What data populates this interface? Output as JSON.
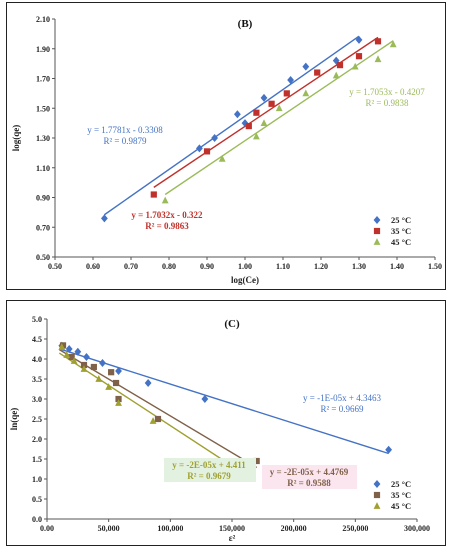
{
  "chart_data": [
    {
      "type": "scatter",
      "title": "(B)",
      "xlabel": "log(Ce)",
      "ylabel": "log(qe)",
      "xlim": [
        0.5,
        1.5
      ],
      "ylim": [
        0.5,
        2.1
      ],
      "xticks": [
        "0.50",
        "0.60",
        "0.70",
        "0.80",
        "0.90",
        "1.00",
        "1.10",
        "1.20",
        "1.30",
        "1.40",
        "1.50"
      ],
      "yticks": [
        "0.50",
        "0.70",
        "0.90",
        "1.10",
        "1.30",
        "1.50",
        "1.70",
        "1.90",
        "2.10"
      ],
      "grid": false,
      "legend": "bottom-right",
      "series": [
        {
          "name": "25 °C",
          "color": "#4472C4",
          "marker": "diamond",
          "x": [
            0.63,
            0.88,
            0.92,
            0.98,
            1.0,
            1.05,
            1.12,
            1.16,
            1.24,
            1.3
          ],
          "y": [
            0.76,
            1.23,
            1.3,
            1.46,
            1.4,
            1.57,
            1.69,
            1.78,
            1.82,
            1.96
          ],
          "equation": "y = 1.7781x - 0.3308",
          "r2": "R² = 0.9879",
          "fit": [
            0.63,
            1.3
          ]
        },
        {
          "name": "35 °C",
          "color": "#C0312B",
          "marker": "square",
          "x": [
            0.76,
            0.9,
            1.01,
            1.03,
            1.07,
            1.11,
            1.19,
            1.25,
            1.3,
            1.35
          ],
          "y": [
            0.92,
            1.21,
            1.38,
            1.47,
            1.53,
            1.6,
            1.74,
            1.79,
            1.85,
            1.95
          ],
          "equation": "y = 1.7032x - 0.322",
          "r2": "R² = 0.9863",
          "fit": [
            0.76,
            1.35
          ]
        },
        {
          "name": "45 °C",
          "color": "#9BBB59",
          "marker": "triangle",
          "x": [
            0.79,
            0.94,
            1.03,
            1.05,
            1.09,
            1.16,
            1.24,
            1.29,
            1.35,
            1.39
          ],
          "y": [
            0.88,
            1.16,
            1.31,
            1.4,
            1.5,
            1.6,
            1.72,
            1.78,
            1.83,
            1.93
          ],
          "equation": "y = 1.7053x - 0.4207",
          "r2": "R² = 0.9838",
          "fit": [
            0.79,
            1.39
          ]
        }
      ]
    },
    {
      "type": "scatter",
      "title": "(C)",
      "xlabel": "ε²",
      "ylabel": "ln(qe)",
      "xlim": [
        0,
        300000
      ],
      "ylim": [
        0.0,
        5.0
      ],
      "xticks": [
        "0.00",
        "50,000",
        "100,000",
        "150,000",
        "200,000",
        "250,000",
        "300,000"
      ],
      "yticks": [
        "0.0",
        "0.5",
        "1.0",
        "1.5",
        "2.0",
        "2.5",
        "3.0",
        "3.5",
        "4.0",
        "4.5",
        "5.0"
      ],
      "grid": false,
      "legend": "bottom-right",
      "series": [
        {
          "name": "25 °C",
          "color": "#4472C4",
          "marker": "diamond",
          "x": [
            12000,
            18000,
            25000,
            32000,
            45000,
            58000,
            82000,
            128000,
            277000
          ],
          "y": [
            4.33,
            4.25,
            4.18,
            4.05,
            3.9,
            3.7,
            3.4,
            3.0,
            1.73
          ],
          "equation": "y = -1E-05x + 4.3463",
          "r2": "R² = 0.9669",
          "fit": [
            10000,
            277000
          ]
        },
        {
          "name": "35 °C",
          "color": "#7F6048",
          "marker": "square",
          "x": [
            13000,
            20000,
            30000,
            38000,
            52000,
            56000,
            58000,
            90000,
            170000
          ],
          "y": [
            4.34,
            4.05,
            3.85,
            3.8,
            3.67,
            3.4,
            3.0,
            2.5,
            1.45
          ],
          "equation": "y = -2E-05x + 4.4769",
          "r2": "R² = 0.9588",
          "fit": [
            10000,
            170000
          ]
        },
        {
          "name": "45 °C",
          "color": "#A0A030",
          "marker": "triangle",
          "x": [
            12000,
            16000,
            22000,
            30000,
            42000,
            50000,
            58000,
            86000,
            160000
          ],
          "y": [
            4.3,
            4.1,
            3.95,
            3.75,
            3.5,
            3.3,
            2.9,
            2.45,
            1.3
          ],
          "equation": "y = -2E-05x + 4.411",
          "r2": "R² = 0.9679",
          "fit": [
            10000,
            162000
          ]
        }
      ]
    }
  ]
}
